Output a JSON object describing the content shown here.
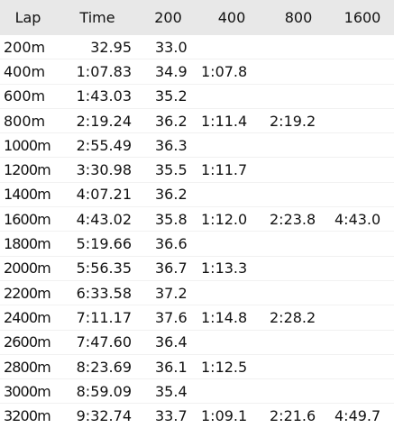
{
  "table": {
    "headers": [
      "Lap",
      "Time",
      "200",
      "400",
      "800",
      "1600"
    ],
    "rows": [
      {
        "lap": "200m",
        "time": "32.95",
        "s200": "33.0",
        "s400": "",
        "s800": "",
        "s1600": ""
      },
      {
        "lap": "400m",
        "time": "1:07.83",
        "s200": "34.9",
        "s400": "1:07.8",
        "s800": "",
        "s1600": ""
      },
      {
        "lap": "600m",
        "time": "1:43.03",
        "s200": "35.2",
        "s400": "",
        "s800": "",
        "s1600": ""
      },
      {
        "lap": "800m",
        "time": "2:19.24",
        "s200": "36.2",
        "s400": "1:11.4",
        "s800": "2:19.2",
        "s1600": ""
      },
      {
        "lap": "1000m",
        "time": "2:55.49",
        "s200": "36.3",
        "s400": "",
        "s800": "",
        "s1600": ""
      },
      {
        "lap": "1200m",
        "time": "3:30.98",
        "s200": "35.5",
        "s400": "1:11.7",
        "s800": "",
        "s1600": ""
      },
      {
        "lap": "1400m",
        "time": "4:07.21",
        "s200": "36.2",
        "s400": "",
        "s800": "",
        "s1600": ""
      },
      {
        "lap": "1600m",
        "time": "4:43.02",
        "s200": "35.8",
        "s400": "1:12.0",
        "s800": "2:23.8",
        "s1600": "4:43.0"
      },
      {
        "lap": "1800m",
        "time": "5:19.66",
        "s200": "36.6",
        "s400": "",
        "s800": "",
        "s1600": ""
      },
      {
        "lap": "2000m",
        "time": "5:56.35",
        "s200": "36.7",
        "s400": "1:13.3",
        "s800": "",
        "s1600": ""
      },
      {
        "lap": "2200m",
        "time": "6:33.58",
        "s200": "37.2",
        "s400": "",
        "s800": "",
        "s1600": ""
      },
      {
        "lap": "2400m",
        "time": "7:11.17",
        "s200": "37.6",
        "s400": "1:14.8",
        "s800": "2:28.2",
        "s1600": ""
      },
      {
        "lap": "2600m",
        "time": "7:47.60",
        "s200": "36.4",
        "s400": "",
        "s800": "",
        "s1600": ""
      },
      {
        "lap": "2800m",
        "time": "8:23.69",
        "s200": "36.1",
        "s400": "1:12.5",
        "s800": "",
        "s1600": ""
      },
      {
        "lap": "3000m",
        "time": "8:59.09",
        "s200": "35.4",
        "s400": "",
        "s800": "",
        "s1600": ""
      },
      {
        "lap": "3200m",
        "time": "9:32.74",
        "s200": "33.7",
        "s400": "1:09.1",
        "s800": "2:21.6",
        "s1600": "4:49.7"
      }
    ]
  }
}
